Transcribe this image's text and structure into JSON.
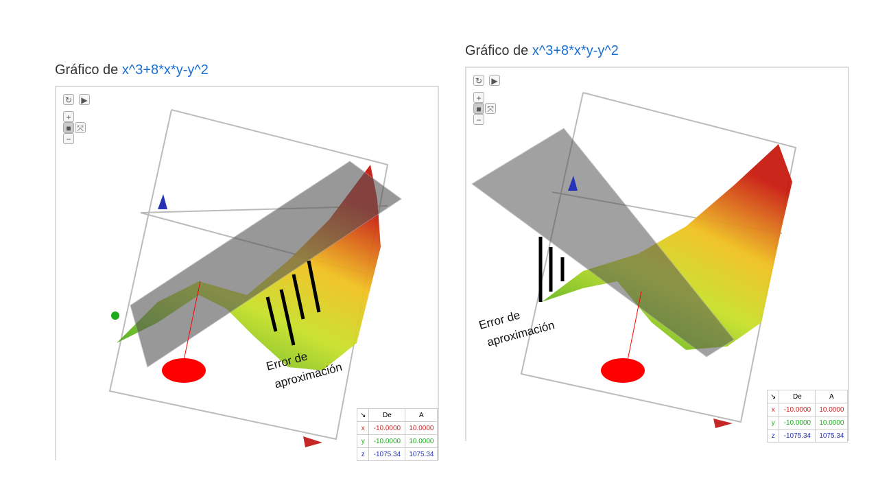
{
  "graphs": [
    {
      "title_prefix": "Gráfico de ",
      "function": "x^3+8*x*y-y^2",
      "annotation": [
        "Error de",
        "aproximación"
      ],
      "table": {
        "headers": [
          "↘",
          "De",
          "A"
        ],
        "rows": [
          [
            "x",
            "-10.0000",
            "10.0000"
          ],
          [
            "y",
            "-10.0000",
            "10.0000"
          ],
          [
            "z",
            "-1075.34",
            "1075.34"
          ]
        ]
      }
    },
    {
      "title_prefix": "Gráfico de ",
      "function": "x^3+8*x*y-y^2",
      "annotation": [
        "Error de",
        "aproximación"
      ],
      "table": {
        "headers": [
          "↘",
          "De",
          "A"
        ],
        "rows": [
          [
            "x",
            "-10.0000",
            "10.0000"
          ],
          [
            "y",
            "-10.0000",
            "10.0000"
          ],
          [
            "z",
            "-1075.34",
            "1075.34"
          ]
        ]
      }
    }
  ],
  "toolbar": {
    "reset": "↻",
    "play": "▶",
    "zoom_in": "+",
    "camera": "■",
    "axes": "⤧",
    "zoom_out": "−"
  },
  "colors": {
    "function": "#1a6fd1",
    "x": "#c62828",
    "y": "#1faa1f",
    "z": "#2633b8"
  }
}
